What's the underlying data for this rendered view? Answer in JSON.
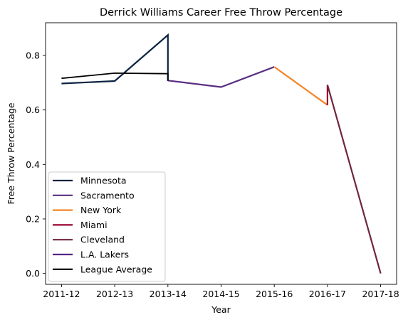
{
  "chart_data": {
    "type": "line",
    "title": "Derrick Williams  Career Free Throw Percentage",
    "xlabel": "Year",
    "ylabel": "Free Throw Percentage",
    "categories": [
      "2011-12",
      "2012-13",
      "2013-14",
      "2014-15",
      "2015-16",
      "2016-17",
      "2017-18"
    ],
    "y_ticks": [
      0.0,
      0.2,
      0.4,
      0.6,
      0.8
    ],
    "y_tick_labels": [
      "0.0",
      "0.2",
      "0.4",
      "0.6",
      "0.8"
    ],
    "ylim": [
      -0.04,
      0.92
    ],
    "xlim": [
      -0.3,
      6.3
    ],
    "legend_position": "lower-left",
    "series": [
      {
        "name": "Minnesota",
        "color": "#0c2340",
        "points": [
          [
            0,
            0.697
          ],
          [
            1,
            0.706
          ],
          [
            2,
            0.875
          ],
          [
            2,
            0.707
          ]
        ]
      },
      {
        "name": "Sacramento",
        "color": "#5a2d81",
        "points": [
          [
            2,
            0.708
          ],
          [
            3,
            0.684
          ],
          [
            4,
            0.758
          ]
        ]
      },
      {
        "name": "New York",
        "color": "#f58426",
        "points": [
          [
            4,
            0.758
          ],
          [
            5,
            0.618
          ]
        ]
      },
      {
        "name": "Miami",
        "color": "#98002e",
        "points": [
          [
            5,
            0.618
          ],
          [
            5,
            0.692
          ]
        ]
      },
      {
        "name": "Cleveland",
        "color": "#6f263d",
        "points": [
          [
            5,
            0.692
          ],
          [
            6,
            0.0
          ]
        ]
      },
      {
        "name": "L.A. Lakers",
        "color": "#552583",
        "points": []
      },
      {
        "name": "League Average",
        "color": "#000000",
        "points": [
          [
            0,
            0.716
          ],
          [
            1,
            0.735
          ],
          [
            2,
            0.733
          ],
          [
            2,
            0.707
          ]
        ]
      }
    ]
  }
}
